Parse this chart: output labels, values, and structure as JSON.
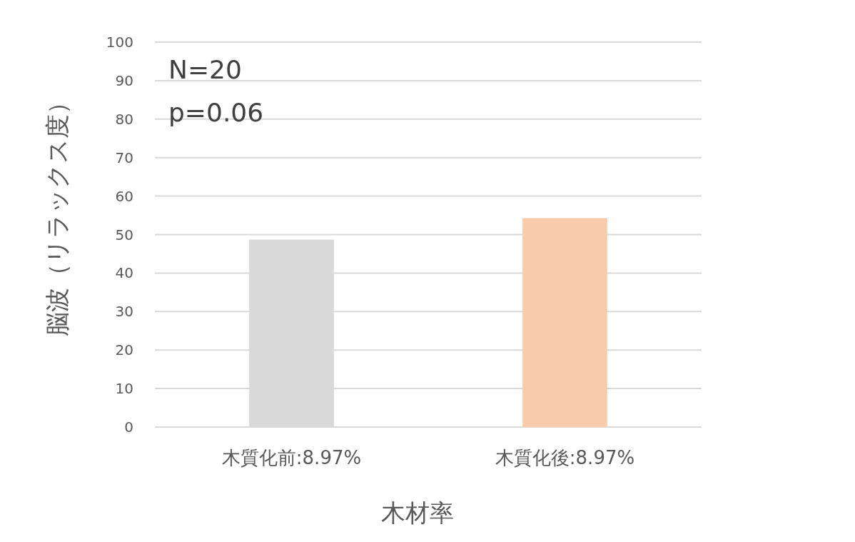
{
  "chart_data": {
    "type": "bar",
    "xlabel": "木材率",
    "ylabel": "脳波（リラックス度）",
    "categories": [
      "木質化前:8.97%",
      "木質化後:8.97%"
    ],
    "values": [
      48.7,
      54.3
    ],
    "colors": [
      "#d9d9d9",
      "#f8cbad"
    ],
    "ylim": [
      0,
      100
    ],
    "yticks": [
      0,
      10,
      20,
      30,
      40,
      50,
      60,
      70,
      80,
      90,
      100
    ],
    "grid": "y",
    "annotations": [
      "N=20",
      "p=0.06"
    ]
  }
}
